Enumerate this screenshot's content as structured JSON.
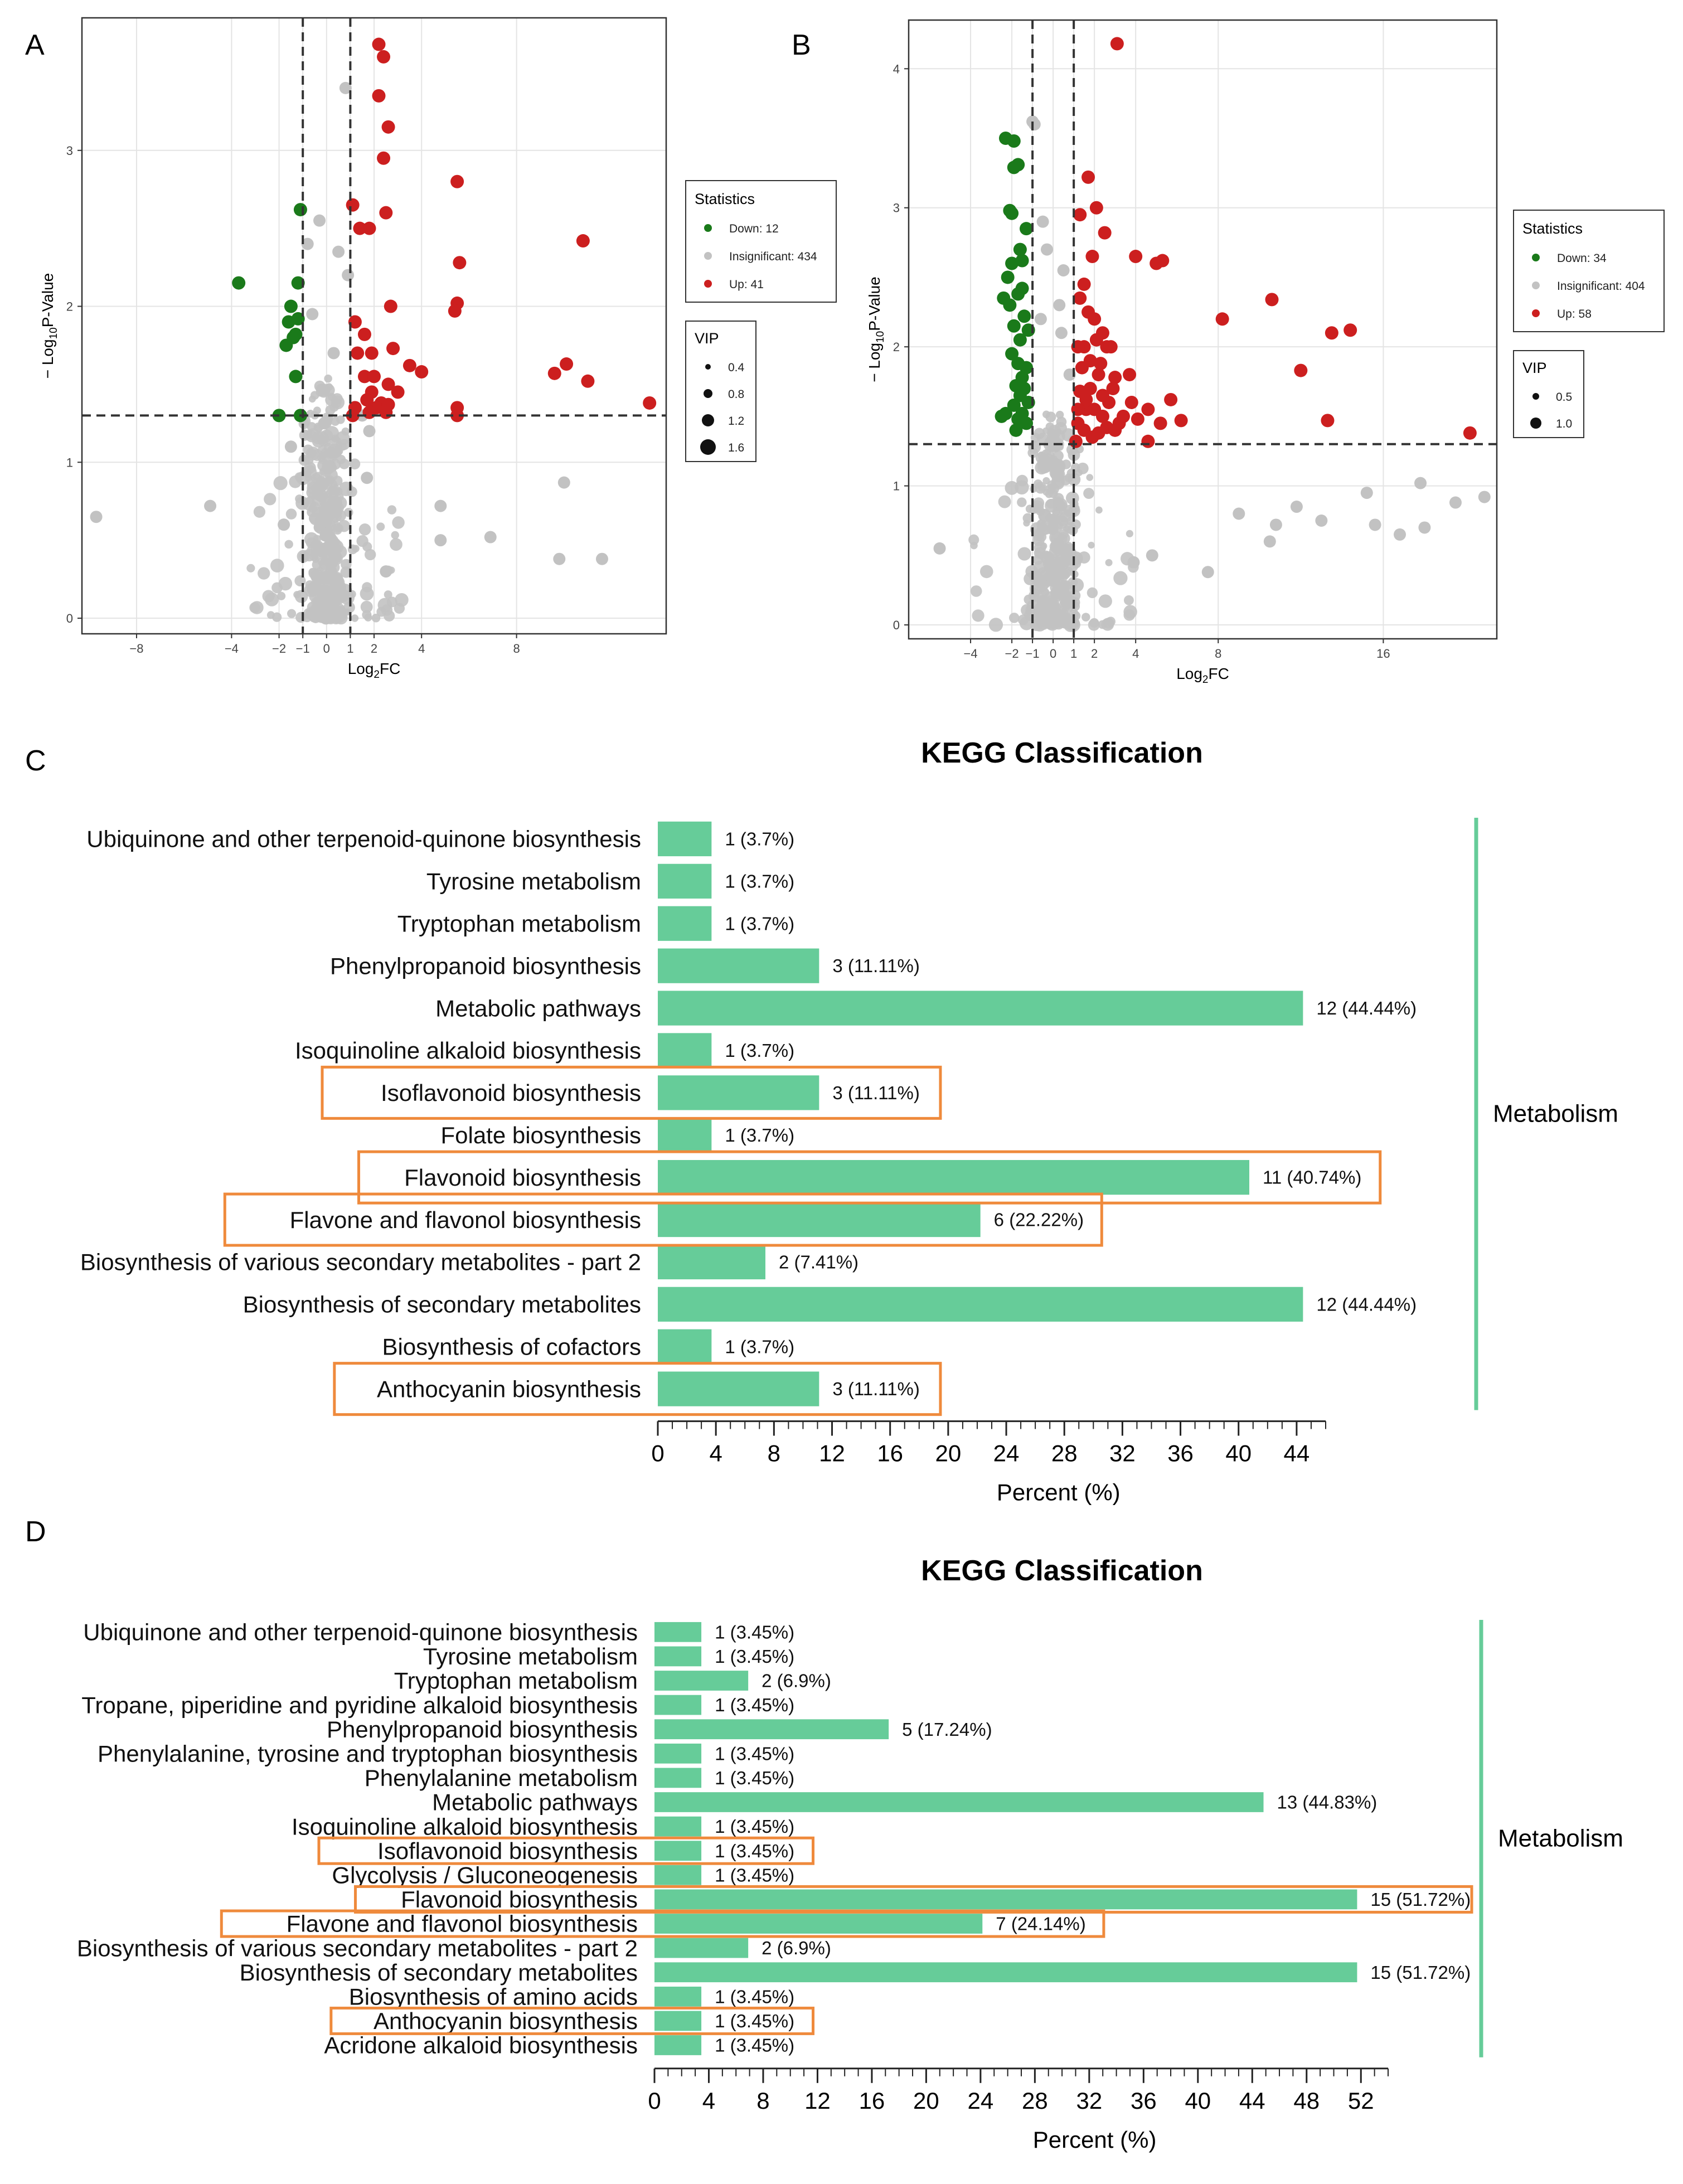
{
  "panels": {
    "A": "A",
    "B": "B",
    "C": "C",
    "D": "D"
  },
  "colors": {
    "up": "#cc1f1f",
    "down": "#1a7a1a",
    "insig": "#c2c2c2",
    "bar": "#66cc99",
    "highlight": "#ef8a3c",
    "grid": "#e4e4e4"
  },
  "chart_data": [
    {
      "id": "A",
      "type": "scatter",
      "title": "",
      "xlabel_main": "Log",
      "xlabel_sub": "2",
      "xlabel_tail": "FC",
      "ylabel_pre": "− Log",
      "ylabel_sub": "10",
      "ylabel_tail": "P-Value",
      "xlim": [
        -10.3,
        14.3
      ],
      "ylim": [
        -0.1,
        3.85
      ],
      "xticks": [
        {
          "v": -8,
          "label": "−8"
        },
        {
          "v": -4,
          "label": "−4"
        },
        {
          "v": -2,
          "label": "−2"
        },
        {
          "v": -1,
          "label": "−1"
        },
        {
          "v": 0,
          "label": "0"
        },
        {
          "v": 1,
          "label": "1"
        },
        {
          "v": 2,
          "label": "2"
        },
        {
          "v": 4,
          "label": "4"
        },
        {
          "v": 8,
          "label": "8"
        }
      ],
      "yticks": [
        {
          "v": 0,
          "label": "0"
        },
        {
          "v": 1,
          "label": "1"
        },
        {
          "v": 2,
          "label": "2"
        },
        {
          "v": 3,
          "label": "3"
        }
      ],
      "vlines": [
        -1,
        1
      ],
      "hline": 1.3,
      "legend": {
        "title": "Statistics",
        "items": [
          {
            "key": "down",
            "label": "Down: 12"
          },
          {
            "key": "insig",
            "label": "Insignificant: 434"
          },
          {
            "key": "up",
            "label": "Up: 41"
          }
        ]
      },
      "vip": {
        "title": "VIP",
        "items": [
          {
            "label": "0.4",
            "r": 5
          },
          {
            "label": "0.8",
            "r": 8
          },
          {
            "label": "1.2",
            "r": 11
          },
          {
            "label": "1.6",
            "r": 14
          }
        ]
      },
      "points": {
        "up": [
          [
            2.2,
            3.68
          ],
          [
            2.4,
            3.6
          ],
          [
            2.2,
            3.35
          ],
          [
            2.6,
            3.15
          ],
          [
            2.4,
            2.95
          ],
          [
            1.1,
            2.65
          ],
          [
            1.8,
            2.5
          ],
          [
            2.5,
            2.6
          ],
          [
            1.4,
            2.5
          ],
          [
            5.5,
            2.8
          ],
          [
            5.6,
            2.28
          ],
          [
            10.8,
            2.42
          ],
          [
            5.5,
            2.02
          ],
          [
            5.4,
            1.97
          ],
          [
            2.7,
            2.0
          ],
          [
            1.2,
            1.9
          ],
          [
            1.6,
            1.82
          ],
          [
            1.9,
            1.7
          ],
          [
            2.8,
            1.73
          ],
          [
            3.5,
            1.62
          ],
          [
            4.0,
            1.58
          ],
          [
            2.6,
            1.5
          ],
          [
            1.3,
            1.7
          ],
          [
            1.6,
            1.55
          ],
          [
            1.9,
            1.45
          ],
          [
            2.3,
            1.38
          ],
          [
            2.1,
            1.35
          ],
          [
            1.7,
            1.4
          ],
          [
            1.2,
            1.35
          ],
          [
            2.5,
            1.32
          ],
          [
            2.6,
            1.37
          ],
          [
            1.1,
            1.3
          ],
          [
            5.5,
            1.35
          ],
          [
            5.5,
            1.3
          ],
          [
            9.6,
            1.57
          ],
          [
            10.1,
            1.63
          ],
          [
            11.0,
            1.52
          ],
          [
            13.6,
            1.38
          ],
          [
            2.0,
            1.55
          ],
          [
            3.0,
            1.45
          ],
          [
            1.8,
            1.32
          ]
        ],
        "down": [
          [
            -1.1,
            2.62
          ],
          [
            -3.7,
            2.15
          ],
          [
            -1.2,
            2.15
          ],
          [
            -1.5,
            2.0
          ],
          [
            -1.2,
            1.92
          ],
          [
            -1.6,
            1.9
          ],
          [
            -1.3,
            1.82
          ],
          [
            -1.7,
            1.75
          ],
          [
            -1.4,
            1.8
          ],
          [
            -1.3,
            1.55
          ],
          [
            -2.0,
            1.3
          ],
          [
            -1.1,
            1.3
          ]
        ],
        "insig": [
          [
            -9.7,
            0.65
          ],
          [
            -4.9,
            0.72
          ],
          [
            -1.5,
            1.1
          ],
          [
            1.7,
            0.9
          ],
          [
            -0.5,
            0.2
          ],
          [
            0.2,
            0.35
          ],
          [
            4.8,
            0.72
          ],
          [
            4.8,
            0.5
          ],
          [
            6.9,
            0.52
          ],
          [
            9.8,
            0.38
          ],
          [
            11.6,
            0.38
          ],
          [
            10.0,
            0.87
          ],
          [
            1.8,
            1.2
          ],
          [
            0.8,
            3.4
          ],
          [
            -0.3,
            2.55
          ],
          [
            0.5,
            2.35
          ],
          [
            0.9,
            2.2
          ],
          [
            -0.6,
            1.95
          ],
          [
            1.5,
            1.3
          ],
          [
            -0.1,
            1.25
          ],
          [
            0.0,
            0.45
          ],
          [
            0.3,
            1.7
          ],
          [
            -1.8,
            0.6
          ],
          [
            2.5,
            0.3
          ],
          [
            -0.8,
            2.4
          ]
        ],
        "insig_cloud": {
          "n": 420,
          "x_spread": 1.4,
          "x_far": 3.2,
          "y_max": 1.6,
          "seed": 7
        }
      }
    },
    {
      "id": "B",
      "type": "scatter",
      "title": "",
      "xlabel_main": "Log",
      "xlabel_sub": "2",
      "xlabel_tail": "FC",
      "ylabel_pre": "− Log",
      "ylabel_sub": "10",
      "ylabel_tail": "P-Value",
      "xlim": [
        -7.0,
        21.5
      ],
      "ylim": [
        -0.1,
        4.35
      ],
      "xticks": [
        {
          "v": -4,
          "label": "−4"
        },
        {
          "v": -2,
          "label": "−2"
        },
        {
          "v": -1,
          "label": "−1"
        },
        {
          "v": 0,
          "label": "0"
        },
        {
          "v": 1,
          "label": "1"
        },
        {
          "v": 2,
          "label": "2"
        },
        {
          "v": 4,
          "label": "4"
        },
        {
          "v": 8,
          "label": "8"
        },
        {
          "v": 16,
          "label": "16"
        }
      ],
      "yticks": [
        {
          "v": 0,
          "label": "0"
        },
        {
          "v": 1,
          "label": "1"
        },
        {
          "v": 2,
          "label": "2"
        },
        {
          "v": 3,
          "label": "3"
        },
        {
          "v": 4,
          "label": "4"
        }
      ],
      "vlines": [
        -1,
        1
      ],
      "hline": 1.3,
      "legend": {
        "title": "Statistics",
        "items": [
          {
            "key": "down",
            "label": "Down: 34"
          },
          {
            "key": "insig",
            "label": "Insignificant: 404"
          },
          {
            "key": "up",
            "label": "Up: 58"
          }
        ]
      },
      "vip": {
        "title": "VIP",
        "items": [
          {
            "label": "0.5",
            "r": 6
          },
          {
            "label": "1.0",
            "r": 10
          }
        ]
      },
      "points": {
        "up": [
          [
            3.1,
            4.18
          ],
          [
            1.7,
            3.22
          ],
          [
            2.1,
            3.0
          ],
          [
            2.5,
            2.82
          ],
          [
            1.3,
            2.95
          ],
          [
            1.9,
            2.65
          ],
          [
            4.0,
            2.65
          ],
          [
            5.0,
            2.6
          ],
          [
            5.3,
            2.62
          ],
          [
            1.5,
            2.45
          ],
          [
            1.3,
            2.35
          ],
          [
            1.7,
            2.25
          ],
          [
            2.0,
            2.2
          ],
          [
            2.4,
            2.1
          ],
          [
            2.1,
            2.05
          ],
          [
            1.5,
            2.0
          ],
          [
            1.2,
            2.0
          ],
          [
            2.6,
            2.0
          ],
          [
            2.8,
            2.0
          ],
          [
            8.2,
            2.2
          ],
          [
            10.6,
            2.34
          ],
          [
            13.5,
            2.1
          ],
          [
            14.4,
            2.12
          ],
          [
            1.4,
            1.85
          ],
          [
            2.2,
            1.8
          ],
          [
            3.0,
            1.78
          ],
          [
            3.7,
            1.8
          ],
          [
            1.8,
            1.7
          ],
          [
            1.3,
            1.68
          ],
          [
            2.7,
            1.6
          ],
          [
            3.8,
            1.6
          ],
          [
            5.7,
            1.62
          ],
          [
            12.0,
            1.83
          ],
          [
            1.6,
            1.55
          ],
          [
            2.0,
            1.55
          ],
          [
            2.4,
            1.5
          ],
          [
            3.2,
            1.45
          ],
          [
            4.1,
            1.48
          ],
          [
            4.6,
            1.55
          ],
          [
            5.2,
            1.45
          ],
          [
            6.2,
            1.47
          ],
          [
            13.3,
            1.47
          ],
          [
            20.2,
            1.38
          ],
          [
            1.2,
            1.45
          ],
          [
            1.5,
            1.4
          ],
          [
            2.2,
            1.38
          ],
          [
            2.6,
            1.42
          ],
          [
            3.0,
            1.4
          ],
          [
            1.9,
            1.35
          ],
          [
            4.6,
            1.32
          ],
          [
            1.1,
            1.32
          ],
          [
            1.8,
            1.9
          ],
          [
            2.3,
            1.88
          ],
          [
            2.9,
            1.7
          ],
          [
            1.6,
            1.62
          ],
          [
            2.4,
            1.65
          ],
          [
            1.2,
            1.55
          ],
          [
            3.4,
            1.5
          ]
        ],
        "down": [
          [
            -2.3,
            3.5
          ],
          [
            -1.9,
            3.48
          ],
          [
            -1.7,
            3.31
          ],
          [
            -1.9,
            3.29
          ],
          [
            -2.1,
            2.98
          ],
          [
            -2.0,
            2.96
          ],
          [
            -1.6,
            2.7
          ],
          [
            -1.3,
            2.85
          ],
          [
            -2.2,
            2.5
          ],
          [
            -2.4,
            2.35
          ],
          [
            -1.5,
            2.42
          ],
          [
            -2.1,
            2.3
          ],
          [
            -1.7,
            2.38
          ],
          [
            -1.4,
            2.22
          ],
          [
            -1.9,
            2.15
          ],
          [
            -1.6,
            2.05
          ],
          [
            -1.2,
            2.12
          ],
          [
            -2.0,
            1.95
          ],
          [
            -1.7,
            1.88
          ],
          [
            -1.5,
            1.78
          ],
          [
            -1.3,
            1.85
          ],
          [
            -1.8,
            1.72
          ],
          [
            -1.6,
            1.65
          ],
          [
            -1.4,
            1.7
          ],
          [
            -1.9,
            1.58
          ],
          [
            -2.3,
            1.52
          ],
          [
            -2.5,
            1.5
          ],
          [
            -1.5,
            1.52
          ],
          [
            -1.7,
            1.48
          ],
          [
            -1.3,
            1.45
          ],
          [
            -1.2,
            1.6
          ],
          [
            -1.8,
            1.4
          ],
          [
            -2.0,
            2.6
          ],
          [
            -1.5,
            2.62
          ]
        ],
        "insig": [
          [
            -1.0,
            3.62
          ],
          [
            -0.9,
            3.6
          ],
          [
            0.5,
            2.55
          ],
          [
            0.3,
            2.3
          ],
          [
            -0.5,
            2.9
          ],
          [
            -0.3,
            2.7
          ],
          [
            0.4,
            2.1
          ],
          [
            -0.6,
            2.2
          ],
          [
            0.8,
            1.8
          ],
          [
            15.2,
            0.95
          ],
          [
            19.5,
            0.88
          ],
          [
            20.9,
            0.92
          ],
          [
            17.8,
            1.02
          ],
          [
            11.8,
            0.85
          ],
          [
            13.0,
            0.75
          ],
          [
            15.6,
            0.72
          ],
          [
            16.8,
            0.65
          ],
          [
            18.0,
            0.7
          ],
          [
            9.0,
            0.8
          ],
          [
            10.8,
            0.72
          ],
          [
            10.5,
            0.6
          ],
          [
            4.8,
            0.5
          ],
          [
            3.9,
            0.45
          ],
          [
            7.5,
            0.38
          ],
          [
            -5.5,
            0.55
          ]
        ],
        "insig_cloud": {
          "n": 380,
          "x_spread": 1.7,
          "x_far": 4.0,
          "y_max": 1.6,
          "seed": 19
        }
      }
    },
    {
      "id": "C",
      "type": "bar",
      "orientation": "horizontal",
      "title": "KEGG Classification",
      "xlabel": "Percent (%)",
      "xlim": [
        0,
        46
      ],
      "xticks": [
        0,
        4,
        8,
        12,
        16,
        20,
        24,
        28,
        32,
        36,
        40,
        44
      ],
      "group_label": "Metabolism",
      "categories": [
        "Ubiquinone and other terpenoid-quinone biosynthesis",
        "Tyrosine metabolism",
        "Tryptophan metabolism",
        "Phenylpropanoid biosynthesis",
        "Metabolic pathways",
        "Isoquinoline alkaloid biosynthesis",
        "Isoflavonoid biosynthesis",
        "Folate biosynthesis",
        "Flavonoid biosynthesis",
        "Flavone and flavonol biosynthesis",
        "Biosynthesis of various secondary metabolites - part 2",
        "Biosynthesis of secondary metabolites",
        "Biosynthesis of cofactors",
        "Anthocyanin biosynthesis"
      ],
      "values": [
        3.7,
        3.7,
        3.7,
        11.11,
        44.44,
        3.7,
        11.11,
        3.7,
        40.74,
        22.22,
        7.41,
        44.44,
        3.7,
        11.11
      ],
      "data_labels": [
        "1 (3.7%)",
        "1 (3.7%)",
        "1 (3.7%)",
        "3 (11.11%)",
        "12 (44.44%)",
        "1 (3.7%)",
        "3 (11.11%)",
        "1 (3.7%)",
        "11 (40.74%)",
        "6 (22.22%)",
        "2 (7.41%)",
        "12 (44.44%)",
        "1 (3.7%)",
        "3 (11.11%)"
      ],
      "highlighted": [
        6,
        8,
        9,
        13
      ]
    },
    {
      "id": "D",
      "type": "bar",
      "orientation": "horizontal",
      "title": "KEGG Classification",
      "xlabel": "Percent (%)",
      "xlim": [
        0,
        54
      ],
      "xticks": [
        0,
        4,
        8,
        12,
        16,
        20,
        24,
        28,
        32,
        36,
        40,
        44,
        48,
        52
      ],
      "group_label": "Metabolism",
      "categories": [
        "Ubiquinone and other terpenoid-quinone biosynthesis",
        "Tyrosine metabolism",
        "Tryptophan metabolism",
        "Tropane, piperidine and pyridine alkaloid biosynthesis",
        "Phenylpropanoid biosynthesis",
        "Phenylalanine, tyrosine and tryptophan biosynthesis",
        "Phenylalanine metabolism",
        "Metabolic pathways",
        "Isoquinoline alkaloid biosynthesis",
        "Isoflavonoid biosynthesis",
        "Glycolysis / Gluconeogenesis",
        "Flavonoid biosynthesis",
        "Flavone and flavonol biosynthesis",
        "Biosynthesis of various secondary metabolites - part 2",
        "Biosynthesis of secondary metabolites",
        "Biosynthesis of amino acids",
        "Anthocyanin biosynthesis",
        "Acridone alkaloid biosynthesis"
      ],
      "values": [
        3.45,
        3.45,
        6.9,
        3.45,
        17.24,
        3.45,
        3.45,
        44.83,
        3.45,
        3.45,
        3.45,
        51.72,
        24.14,
        6.9,
        51.72,
        3.45,
        3.45,
        3.45
      ],
      "data_labels": [
        "1 (3.45%)",
        "1 (3.45%)",
        "2 (6.9%)",
        "1 (3.45%)",
        "5 (17.24%)",
        "1 (3.45%)",
        "1 (3.45%)",
        "13 (44.83%)",
        "1 (3.45%)",
        "1 (3.45%)",
        "1 (3.45%)",
        "15 (51.72%)",
        "7 (24.14%)",
        "2 (6.9%)",
        "15 (51.72%)",
        "1 (3.45%)",
        "1 (3.45%)",
        "1 (3.45%)"
      ],
      "highlighted": [
        9,
        11,
        12,
        16
      ]
    }
  ]
}
